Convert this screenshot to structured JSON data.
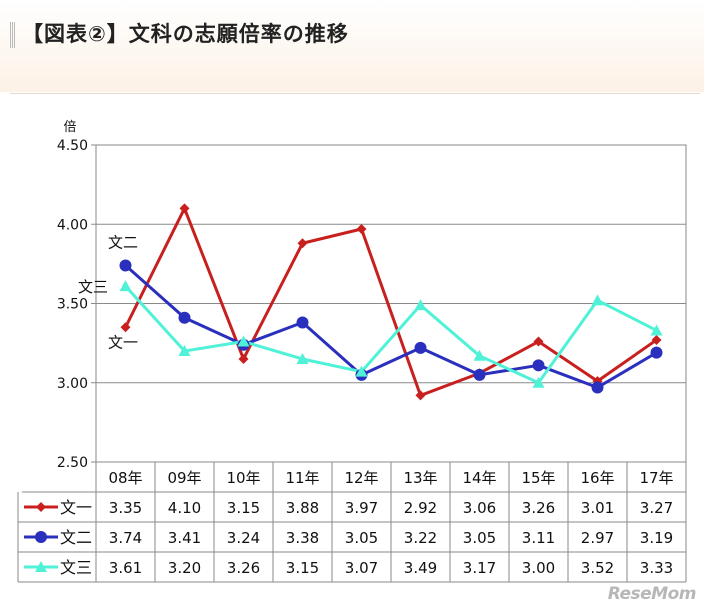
{
  "header": {
    "title": "【図表②】文科の志願倍率の推移"
  },
  "watermark": "ReseMom",
  "chart_data": {
    "type": "line",
    "title": "",
    "xlabel": "",
    "ylabel": "倍",
    "ylim": [
      2.5,
      4.5
    ],
    "yticks": [
      "2.50",
      "3.00",
      "3.50",
      "4.00",
      "4.50"
    ],
    "categories": [
      "08年",
      "09年",
      "10年",
      "11年",
      "12年",
      "13年",
      "14年",
      "15年",
      "16年",
      "17年"
    ],
    "grid": true,
    "legend": "table-bottom",
    "series": [
      {
        "name": "文一",
        "color": "#c8201e",
        "marker": "diamond",
        "values": [
          3.35,
          4.1,
          3.15,
          3.88,
          3.97,
          2.92,
          3.06,
          3.26,
          3.01,
          3.27
        ],
        "labels": [
          "3.35",
          "4.10",
          "3.15",
          "3.88",
          "3.97",
          "2.92",
          "3.06",
          "3.26",
          "3.01",
          "3.27"
        ]
      },
      {
        "name": "文二",
        "color": "#2a2fbd",
        "marker": "circle",
        "values": [
          3.74,
          3.41,
          3.24,
          3.38,
          3.05,
          3.22,
          3.05,
          3.11,
          2.97,
          3.19
        ],
        "labels": [
          "3.74",
          "3.41",
          "3.24",
          "3.38",
          "3.05",
          "3.22",
          "3.05",
          "3.11",
          "2.97",
          "3.19"
        ]
      },
      {
        "name": "文三",
        "color": "#4ff2d6",
        "marker": "triangle",
        "values": [
          3.61,
          3.2,
          3.26,
          3.15,
          3.07,
          3.49,
          3.17,
          3.0,
          3.52,
          3.33
        ],
        "labels": [
          "3.61",
          "3.20",
          "3.26",
          "3.15",
          "3.07",
          "3.49",
          "3.17",
          "3.00",
          "3.52",
          "3.33"
        ]
      }
    ]
  }
}
